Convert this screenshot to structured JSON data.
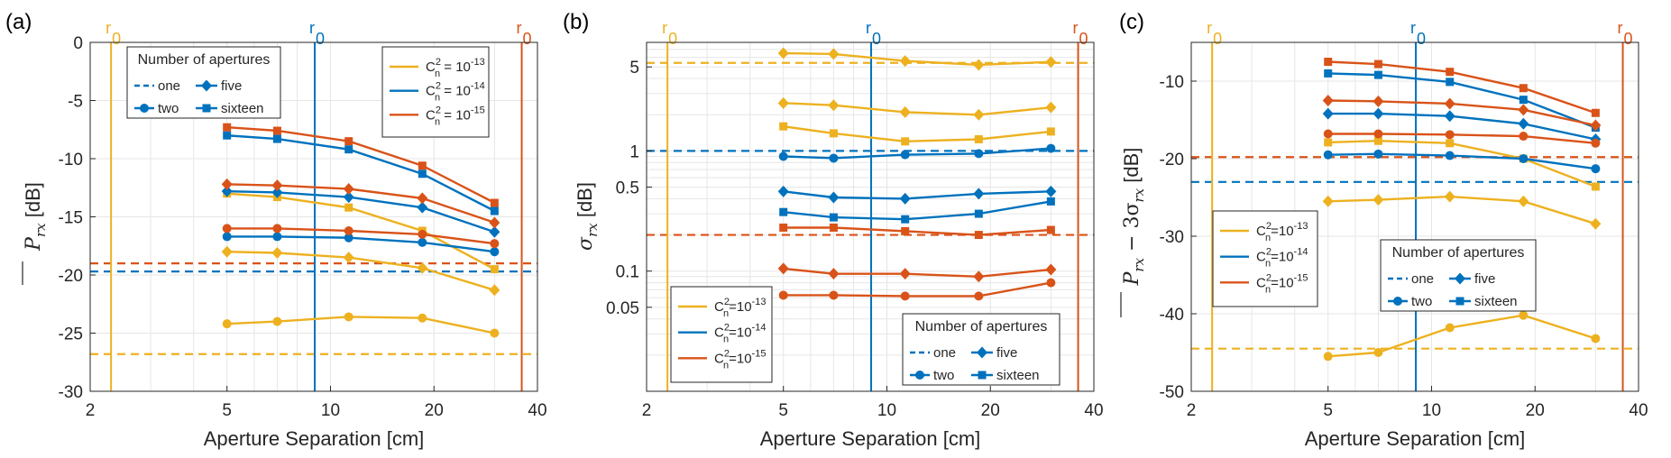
{
  "colors": {
    "c13": "#EDB120",
    "c14": "#0072BD",
    "c15": "#D95319",
    "axis": "#262626",
    "grid": "#e6e6e6"
  },
  "common": {
    "x_label": "Aperture Separation [cm]",
    "x_ticks": [
      "2",
      "5",
      "10",
      "20",
      "40"
    ],
    "r0_label": "r",
    "r0_sub": "0",
    "r0_positions": {
      "c13": 2.3,
      "c14": 9.0,
      "c15": 36.0
    },
    "x": [
      5,
      7,
      11.3,
      18.5,
      30
    ],
    "cn2_legend": [
      "C",
      "2",
      "n",
      "= 10",
      "-13",
      "= 10",
      "-14",
      "= 10",
      "-15",
      "=10"
    ],
    "apertures_title": "Number of apertures",
    "apertures": [
      "one",
      "five",
      "two",
      "sixteen"
    ]
  },
  "chart_data": [
    {
      "panel": "(a)",
      "type": "line",
      "ylabel": "P_rx [dB]",
      "ylabel_parts": [
        "P",
        "rx",
        " [dB]"
      ],
      "xscale": "log",
      "xlim": [
        2,
        40
      ],
      "ylim": [
        -30,
        0
      ],
      "y_ticks": [
        "0",
        "-5",
        "-10",
        "-15",
        "-20",
        "-25",
        "-30"
      ],
      "reference_lines": {
        "c13": -26.8,
        "c14": -19.7,
        "c15": -19.0
      },
      "series": [
        {
          "name": "Cn2=1e-13 two",
          "color": "c13",
          "marker": "circle",
          "values": [
            -24.2,
            -24.0,
            -23.6,
            -23.7,
            -25.0
          ]
        },
        {
          "name": "Cn2=1e-13 five",
          "color": "c13",
          "marker": "diamond",
          "values": [
            -18.0,
            -18.1,
            -18.5,
            -19.4,
            -21.3
          ]
        },
        {
          "name": "Cn2=1e-13 sixteen",
          "color": "c13",
          "marker": "square",
          "values": [
            -13.0,
            -13.3,
            -14.2,
            -16.2,
            -19.5
          ]
        },
        {
          "name": "Cn2=1e-14 two",
          "color": "c14",
          "marker": "circle",
          "values": [
            -16.7,
            -16.7,
            -16.8,
            -17.2,
            -18.0
          ]
        },
        {
          "name": "Cn2=1e-14 five",
          "color": "c14",
          "marker": "diamond",
          "values": [
            -12.8,
            -12.9,
            -13.3,
            -14.2,
            -16.3
          ]
        },
        {
          "name": "Cn2=1e-14 sixteen",
          "color": "c14",
          "marker": "square",
          "values": [
            -8.0,
            -8.3,
            -9.2,
            -11.3,
            -14.5
          ]
        },
        {
          "name": "Cn2=1e-15 two",
          "color": "c15",
          "marker": "circle",
          "values": [
            -16.0,
            -16.0,
            -16.2,
            -16.5,
            -17.3
          ]
        },
        {
          "name": "Cn2=1e-15 five",
          "color": "c15",
          "marker": "diamond",
          "values": [
            -12.2,
            -12.3,
            -12.6,
            -13.4,
            -15.5
          ]
        },
        {
          "name": "Cn2=1e-15 sixteen",
          "color": "c15",
          "marker": "square",
          "values": [
            -7.3,
            -7.6,
            -8.5,
            -10.6,
            -13.8
          ]
        }
      ]
    },
    {
      "panel": "(b)",
      "type": "line",
      "ylabel": "sigma_rx [dB]",
      "ylabel_parts": [
        "σ",
        "rx",
        " [dB]"
      ],
      "xscale": "log",
      "yscale": "log",
      "xlim": [
        2,
        40
      ],
      "ylim": [
        0.01,
        8
      ],
      "y_ticks": [
        "5",
        "1",
        "0.5",
        "0.1",
        "0.05"
      ],
      "y_tick_values": [
        5,
        1,
        0.5,
        0.1,
        0.05
      ],
      "reference_lines": {
        "c13": 5.4,
        "c14": 1.0,
        "c15": 0.2
      },
      "series": [
        {
          "name": "Cn2=1e-13 two",
          "color": "c13",
          "marker": "diamond",
          "values": [
            6.5,
            6.4,
            5.6,
            5.2,
            5.5
          ]
        },
        {
          "name": "Cn2=1e-13 five",
          "color": "c13",
          "marker": "diamond",
          "values": [
            2.5,
            2.4,
            2.1,
            2.0,
            2.3
          ]
        },
        {
          "name": "Cn2=1e-13 sixteen",
          "color": "c13",
          "marker": "square",
          "values": [
            1.6,
            1.4,
            1.2,
            1.25,
            1.45
          ]
        },
        {
          "name": "Cn2=1e-14 two",
          "color": "c14",
          "marker": "circle",
          "values": [
            0.9,
            0.87,
            0.93,
            0.95,
            1.05
          ]
        },
        {
          "name": "Cn2=1e-14 five",
          "color": "c14",
          "marker": "diamond",
          "values": [
            0.46,
            0.41,
            0.4,
            0.44,
            0.46
          ]
        },
        {
          "name": "Cn2=1e-14 sixteen",
          "color": "c14",
          "marker": "square",
          "values": [
            0.31,
            0.28,
            0.27,
            0.3,
            0.38
          ]
        },
        {
          "name": "Cn2=1e-15 two",
          "color": "c15",
          "marker": "circle",
          "values": [
            0.063,
            0.063,
            0.062,
            0.062,
            0.08
          ]
        },
        {
          "name": "Cn2=1e-15 five",
          "color": "c15",
          "marker": "diamond",
          "values": [
            0.105,
            0.095,
            0.095,
            0.09,
            0.103
          ]
        },
        {
          "name": "Cn2=1e-15 sixteen",
          "color": "c15",
          "marker": "square",
          "values": [
            0.23,
            0.23,
            0.215,
            0.2,
            0.22
          ]
        }
      ]
    },
    {
      "panel": "(c)",
      "type": "line",
      "ylabel": "P_rx - 3 sigma_rx [dB]",
      "ylabel_parts": [
        "P",
        "rx",
        " − 3σ",
        "rx",
        " [dB]"
      ],
      "xscale": "log",
      "xlim": [
        2,
        40
      ],
      "ylim": [
        -50,
        -5
      ],
      "y_ticks": [
        "-10",
        "-20",
        "-30",
        "-40",
        "-50"
      ],
      "y_tick_values": [
        -10,
        -20,
        -30,
        -40,
        -50
      ],
      "reference_lines": {
        "c13": -44.5,
        "c14": -23.0,
        "c15": -19.8
      },
      "series": [
        {
          "name": "Cn2=1e-13 two",
          "color": "c13",
          "marker": "circle",
          "values": [
            -45.5,
            -45.0,
            -41.8,
            -40.2,
            -43.2
          ]
        },
        {
          "name": "Cn2=1e-13 five",
          "color": "c13",
          "marker": "diamond",
          "values": [
            -25.5,
            -25.3,
            -24.9,
            -25.5,
            -28.4
          ]
        },
        {
          "name": "Cn2=1e-13 sixteen",
          "color": "c13",
          "marker": "square",
          "values": [
            -17.9,
            -17.7,
            -18.0,
            -20.0,
            -23.6
          ]
        },
        {
          "name": "Cn2=1e-14 two",
          "color": "c14",
          "marker": "circle",
          "values": [
            -19.5,
            -19.4,
            -19.6,
            -20.0,
            -21.3
          ]
        },
        {
          "name": "Cn2=1e-14 five",
          "color": "c14",
          "marker": "diamond",
          "values": [
            -14.2,
            -14.2,
            -14.5,
            -15.5,
            -17.5
          ]
        },
        {
          "name": "Cn2=1e-14 sixteen",
          "color": "c14",
          "marker": "square",
          "values": [
            -9.0,
            -9.2,
            -10.1,
            -12.4,
            -16.0
          ]
        },
        {
          "name": "Cn2=1e-15 two",
          "color": "c15",
          "marker": "circle",
          "values": [
            -16.8,
            -16.8,
            -16.9,
            -17.1,
            -18.0
          ]
        },
        {
          "name": "Cn2=1e-15 five",
          "color": "c15",
          "marker": "diamond",
          "values": [
            -12.5,
            -12.6,
            -12.9,
            -13.7,
            -15.7
          ]
        },
        {
          "name": "Cn2=1e-15 sixteen",
          "color": "c15",
          "marker": "square",
          "values": [
            -7.5,
            -7.8,
            -8.8,
            -10.9,
            -14.1
          ]
        }
      ]
    }
  ]
}
